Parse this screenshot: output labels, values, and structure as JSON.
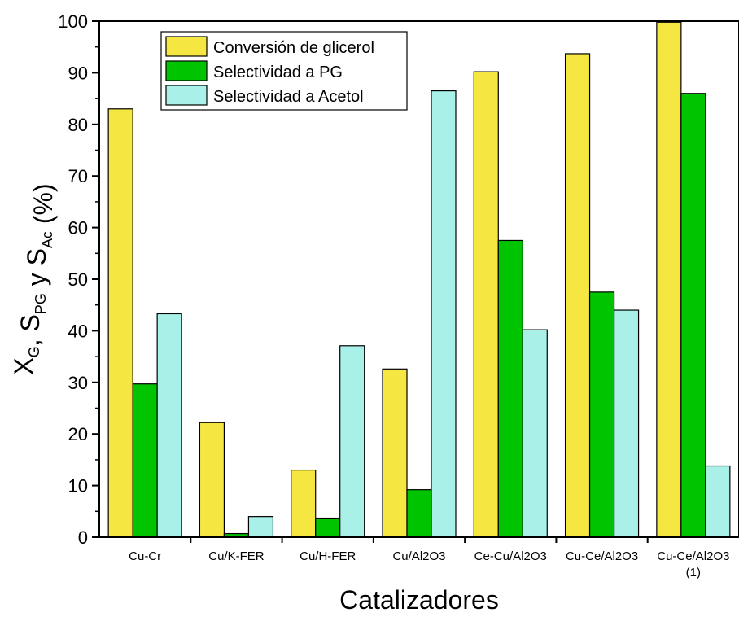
{
  "chart_data": {
    "type": "bar",
    "categories": [
      "Cu-Cr",
      "Cu/K-FER",
      "Cu/H-FER",
      "Cu/Al2O3",
      "Ce-Cu/Al2O3",
      "Cu-Ce/Al2O3",
      "Cu-Ce/Al2O3"
    ],
    "category_notes": [
      "",
      "",
      "",
      "",
      "",
      "",
      "(1)"
    ],
    "series": [
      {
        "name": "Conversión de glicerol",
        "color": "#f5e642",
        "values": [
          83.0,
          22.2,
          13.0,
          32.6,
          90.2,
          93.7,
          99.8
        ]
      },
      {
        "name": "Selectividad a PG",
        "color": "#00c400",
        "values": [
          29.7,
          0.7,
          3.7,
          9.2,
          57.5,
          47.5,
          86.0
        ]
      },
      {
        "name": "Selectividad a Acetol",
        "color": "#a8f0e8",
        "values": [
          43.3,
          4.0,
          37.1,
          86.5,
          40.2,
          44.0,
          13.8
        ]
      }
    ],
    "xlabel": "Catalizadores",
    "ylabel": {
      "parts": [
        {
          "text": "X",
          "sub": "G"
        },
        {
          "text": ",  S",
          "sub": "PG"
        },
        {
          "text": "  y  S",
          "sub": "Ac"
        },
        {
          "text": "  (%)",
          "sub": ""
        }
      ]
    },
    "ylim": [
      0,
      100
    ],
    "yticks": [
      0,
      10,
      20,
      30,
      40,
      50,
      60,
      70,
      80,
      90,
      100
    ],
    "legend_position": "top-left",
    "grid": false
  }
}
